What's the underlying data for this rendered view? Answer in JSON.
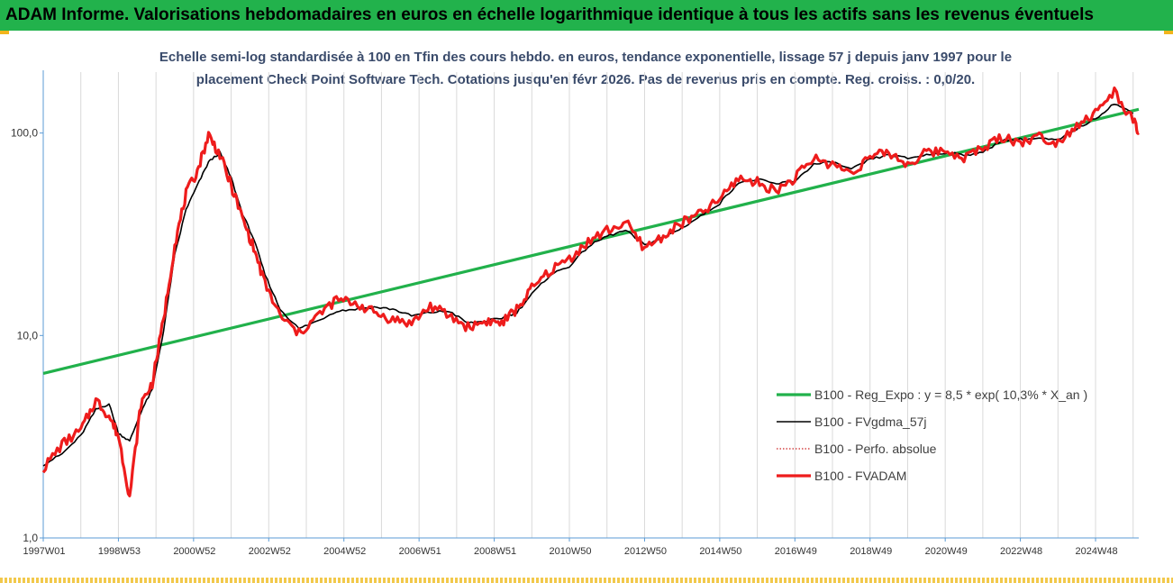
{
  "header": {
    "title": "ADAM Informe. Valorisations hebdomadaires en euros en échelle logarithmique identique à tous les actifs sans les revenus éventuels"
  },
  "chart_data": {
    "type": "line",
    "title_line1": "Echelle semi-log standardisée à 100 en Tfin des cours hebdo. en euros, tendance exponentielle, lissage 57 j depuis janv 1997 pour le",
    "title_line2": "placement Check Point Software Tech. Cotations jusqu'en févr 2026. Pas de revenus pris en compte. Reg. croiss. : 0,0/20.",
    "y_scale": "log",
    "ylim": [
      1,
      200
    ],
    "xlim": [
      1997.0,
      2026.15
    ],
    "y_ticks": [
      {
        "value": 1,
        "label": "1,0"
      },
      {
        "value": 10,
        "label": "10,0"
      },
      {
        "value": 100,
        "label": "100,0"
      }
    ],
    "x_ticks": [
      {
        "value": 1997.0,
        "label": "1997W01"
      },
      {
        "value": 1999.0,
        "label": "1998W53"
      },
      {
        "value": 2001.0,
        "label": "2000W52"
      },
      {
        "value": 2003.0,
        "label": "2002W52"
      },
      {
        "value": 2005.0,
        "label": "2004W52"
      },
      {
        "value": 2007.0,
        "label": "2006W51"
      },
      {
        "value": 2009.0,
        "label": "2008W51"
      },
      {
        "value": 2011.0,
        "label": "2010W50"
      },
      {
        "value": 2013.0,
        "label": "2012W50"
      },
      {
        "value": 2015.0,
        "label": "2014W50"
      },
      {
        "value": 2017.0,
        "label": "2016W49"
      },
      {
        "value": 2019.0,
        "label": "2018W49"
      },
      {
        "value": 2021.0,
        "label": "2020W49"
      },
      {
        "value": 2023.0,
        "label": "2022W48"
      },
      {
        "value": 2025.0,
        "label": "2024W48"
      }
    ],
    "grid": {
      "vertical": true,
      "horizontal": false
    },
    "legend_position": "bottom-right",
    "series": [
      {
        "name": "B100 - Reg_Expo : y = 8,5 * exp( 10,3% *  X_an )",
        "color": "#21b14b",
        "style": "solid-thick",
        "x": [
          1997.0,
          2026.15
        ],
        "y": [
          6.5,
          131
        ]
      },
      {
        "name": "B100 - FVgdma_57j",
        "color": "#000000",
        "style": "solid-thin",
        "x": [
          1997.0,
          1997.5,
          1998.0,
          1998.4,
          1998.75,
          1999.0,
          1999.3,
          1999.6,
          1999.9,
          2000.2,
          2000.5,
          2000.8,
          2001.1,
          2001.4,
          2001.7,
          2002.0,
          2002.3,
          2002.6,
          2002.9,
          2003.3,
          2003.8,
          2004.3,
          2004.8,
          2005.3,
          2005.8,
          2006.3,
          2006.8,
          2007.3,
          2007.8,
          2008.3,
          2008.8,
          2009.2,
          2009.6,
          2010.0,
          2010.5,
          2011.0,
          2011.5,
          2012.0,
          2012.5,
          2013.0,
          2013.5,
          2014.0,
          2014.5,
          2015.0,
          2015.5,
          2016.0,
          2016.5,
          2017.0,
          2017.5,
          2018.0,
          2018.5,
          2019.0,
          2019.5,
          2020.0,
          2020.5,
          2021.0,
          2021.5,
          2022.0,
          2022.5,
          2023.0,
          2023.5,
          2024.0,
          2024.5,
          2025.0,
          2025.5,
          2026.0
        ],
        "y": [
          2.3,
          2.6,
          3.2,
          4.3,
          4.6,
          3.3,
          3.0,
          4.2,
          5.4,
          10.5,
          25.0,
          42.0,
          55.0,
          72.0,
          80.0,
          60.0,
          40.0,
          30.0,
          20.0,
          13.5,
          10.8,
          11.8,
          13.2,
          13.5,
          13.8,
          13.5,
          12.5,
          13.0,
          13.2,
          11.5,
          11.8,
          12.2,
          13.0,
          16.0,
          20.0,
          22.0,
          27.5,
          31.0,
          33.0,
          28.0,
          30.5,
          34.0,
          39.0,
          45.0,
          57.0,
          59.0,
          56.0,
          58.0,
          70.0,
          72.0,
          66.0,
          74.0,
          78.0,
          75.0,
          78.0,
          80.0,
          78.0,
          80.0,
          92.0,
          93.0,
          94.0,
          92.0,
          105.0,
          118.0,
          140.0,
          125.0
        ]
      },
      {
        "name": "B100 - Perfo. absolue",
        "color": "#cc2222",
        "style": "dotted",
        "x": [
          1997.0,
          1997.5,
          1998.0,
          1998.4,
          1998.75,
          1999.0,
          1999.3,
          1999.6,
          1999.9,
          2000.2,
          2000.5,
          2000.8,
          2001.1,
          2001.4,
          2001.7,
          2002.0,
          2002.3,
          2002.6,
          2002.9,
          2003.3,
          2003.8,
          2004.3,
          2004.8,
          2005.3,
          2005.8,
          2006.3,
          2006.8,
          2007.3,
          2007.8,
          2008.3,
          2008.8,
          2009.2,
          2009.6,
          2010.0,
          2010.5,
          2011.0,
          2011.5,
          2012.0,
          2012.5,
          2013.0,
          2013.5,
          2014.0,
          2014.5,
          2015.0,
          2015.5,
          2016.0,
          2016.5,
          2017.0,
          2017.5,
          2018.0,
          2018.5,
          2019.0,
          2019.5,
          2020.0,
          2020.5,
          2021.0,
          2021.5,
          2022.0,
          2022.5,
          2023.0,
          2023.5,
          2024.0,
          2024.5,
          2025.0,
          2025.5,
          2026.0,
          2026.15
        ],
        "y": [
          2.2,
          2.9,
          3.4,
          4.8,
          4.0,
          3.2,
          1.6,
          4.6,
          5.8,
          12.0,
          28.0,
          50.0,
          65.0,
          98.0,
          78.0,
          55.0,
          38.0,
          27.0,
          18.0,
          12.5,
          10.2,
          12.5,
          15.0,
          14.5,
          13.0,
          12.0,
          11.5,
          14.0,
          12.5,
          11.0,
          11.8,
          11.5,
          13.5,
          17.0,
          21.0,
          24.0,
          29.0,
          33.0,
          36.0,
          27.0,
          31.0,
          36.0,
          40.0,
          47.0,
          60.0,
          57.0,
          52.0,
          60.0,
          75.0,
          70.0,
          64.0,
          76.0,
          80.0,
          70.0,
          80.0,
          82.0,
          76.0,
          84.0,
          96.0,
          90.0,
          96.0,
          90.0,
          110.0,
          125.0,
          160.0,
          115.0,
          100.0
        ]
      },
      {
        "name": "B100 - FVADAM",
        "color": "#ee1c1c",
        "style": "solid-thick",
        "x": [
          1997.0,
          1997.5,
          1998.0,
          1998.4,
          1998.75,
          1999.0,
          1999.3,
          1999.6,
          1999.9,
          2000.2,
          2000.5,
          2000.8,
          2001.1,
          2001.4,
          2001.7,
          2002.0,
          2002.3,
          2002.6,
          2002.9,
          2003.3,
          2003.8,
          2004.3,
          2004.8,
          2005.3,
          2005.8,
          2006.3,
          2006.8,
          2007.3,
          2007.8,
          2008.3,
          2008.8,
          2009.2,
          2009.6,
          2010.0,
          2010.5,
          2011.0,
          2011.5,
          2012.0,
          2012.5,
          2013.0,
          2013.5,
          2014.0,
          2014.5,
          2015.0,
          2015.5,
          2016.0,
          2016.5,
          2017.0,
          2017.5,
          2018.0,
          2018.5,
          2019.0,
          2019.5,
          2020.0,
          2020.5,
          2021.0,
          2021.5,
          2022.0,
          2022.5,
          2023.0,
          2023.5,
          2024.0,
          2024.5,
          2025.0,
          2025.5,
          2026.0,
          2026.15
        ],
        "y": [
          2.2,
          2.9,
          3.4,
          4.8,
          4.0,
          3.2,
          1.6,
          4.6,
          5.8,
          12.0,
          28.0,
          50.0,
          65.0,
          98.0,
          78.0,
          55.0,
          38.0,
          27.0,
          18.0,
          12.5,
          10.2,
          12.5,
          15.0,
          14.5,
          13.0,
          12.0,
          11.5,
          14.0,
          12.5,
          11.0,
          11.8,
          11.5,
          13.5,
          17.0,
          21.0,
          24.0,
          29.0,
          33.0,
          36.0,
          27.0,
          31.0,
          36.0,
          40.0,
          47.0,
          60.0,
          57.0,
          52.0,
          60.0,
          75.0,
          70.0,
          64.0,
          76.0,
          80.0,
          70.0,
          80.0,
          82.0,
          76.0,
          84.0,
          96.0,
          90.0,
          96.0,
          90.0,
          110.0,
          125.0,
          160.0,
          115.0,
          100.0
        ]
      }
    ]
  }
}
